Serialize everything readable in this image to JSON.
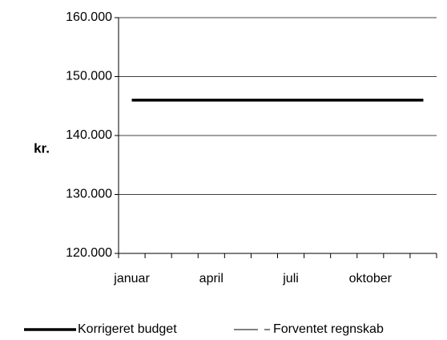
{
  "chart_data": {
    "type": "line",
    "y_label": "kr.",
    "categories": [
      "januar",
      null,
      null,
      "april",
      null,
      null,
      "juli",
      null,
      null,
      "oktober",
      null,
      null
    ],
    "series": [
      {
        "name": "Korrigeret budget",
        "color": "#000000",
        "values": [
          146000,
          146000,
          146000,
          146000,
          146000,
          146000,
          146000,
          146000,
          146000,
          146000,
          146000,
          146000
        ]
      },
      {
        "name": "Forventet regnskab",
        "color": "#000000",
        "values": [
          146000,
          146000,
          146000,
          146000,
          146000,
          146000,
          146000,
          146000,
          146000,
          146000,
          146000,
          146000
        ]
      }
    ],
    "ylim": [
      120000,
      160000
    ],
    "yticks": [
      {
        "value": 120000,
        "label": "120.000"
      },
      {
        "value": 130000,
        "label": "130.000"
      },
      {
        "value": 140000,
        "label": "140.000"
      },
      {
        "value": 150000,
        "label": "150.000"
      },
      {
        "value": 160000,
        "label": "160.000"
      }
    ],
    "grid": true
  }
}
